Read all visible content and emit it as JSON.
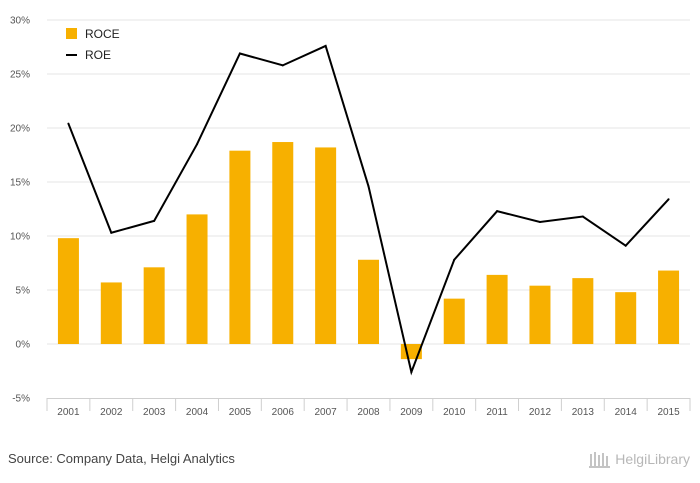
{
  "chart_data": {
    "type": "bar+line",
    "categories": [
      "2001",
      "2002",
      "2003",
      "2004",
      "2005",
      "2006",
      "2007",
      "2008",
      "2009",
      "2010",
      "2011",
      "2012",
      "2013",
      "2014",
      "2015"
    ],
    "series": [
      {
        "name": "ROCE",
        "type": "bar",
        "color": "#f7b000",
        "values": [
          9.8,
          5.7,
          7.1,
          12.0,
          17.9,
          18.7,
          18.2,
          7.8,
          -1.4,
          4.2,
          6.4,
          5.4,
          6.1,
          4.8,
          6.8
        ]
      },
      {
        "name": "ROE",
        "type": "line",
        "color": "#000000",
        "values": [
          20.4,
          10.3,
          11.4,
          18.5,
          26.9,
          25.8,
          27.6,
          14.6,
          -2.6,
          7.8,
          12.3,
          11.3,
          11.8,
          9.1,
          13.4
        ]
      }
    ],
    "yticks": [
      "30%",
      "25%",
      "20%",
      "15%",
      "10%",
      "5%",
      "0%",
      "-5%"
    ],
    "ylim": [
      -5,
      30
    ],
    "legend_position": "top-left",
    "grid": true
  },
  "footer": {
    "source": "Source: Company Data, Helgi Analytics",
    "brand": "HelgiLibrary"
  }
}
